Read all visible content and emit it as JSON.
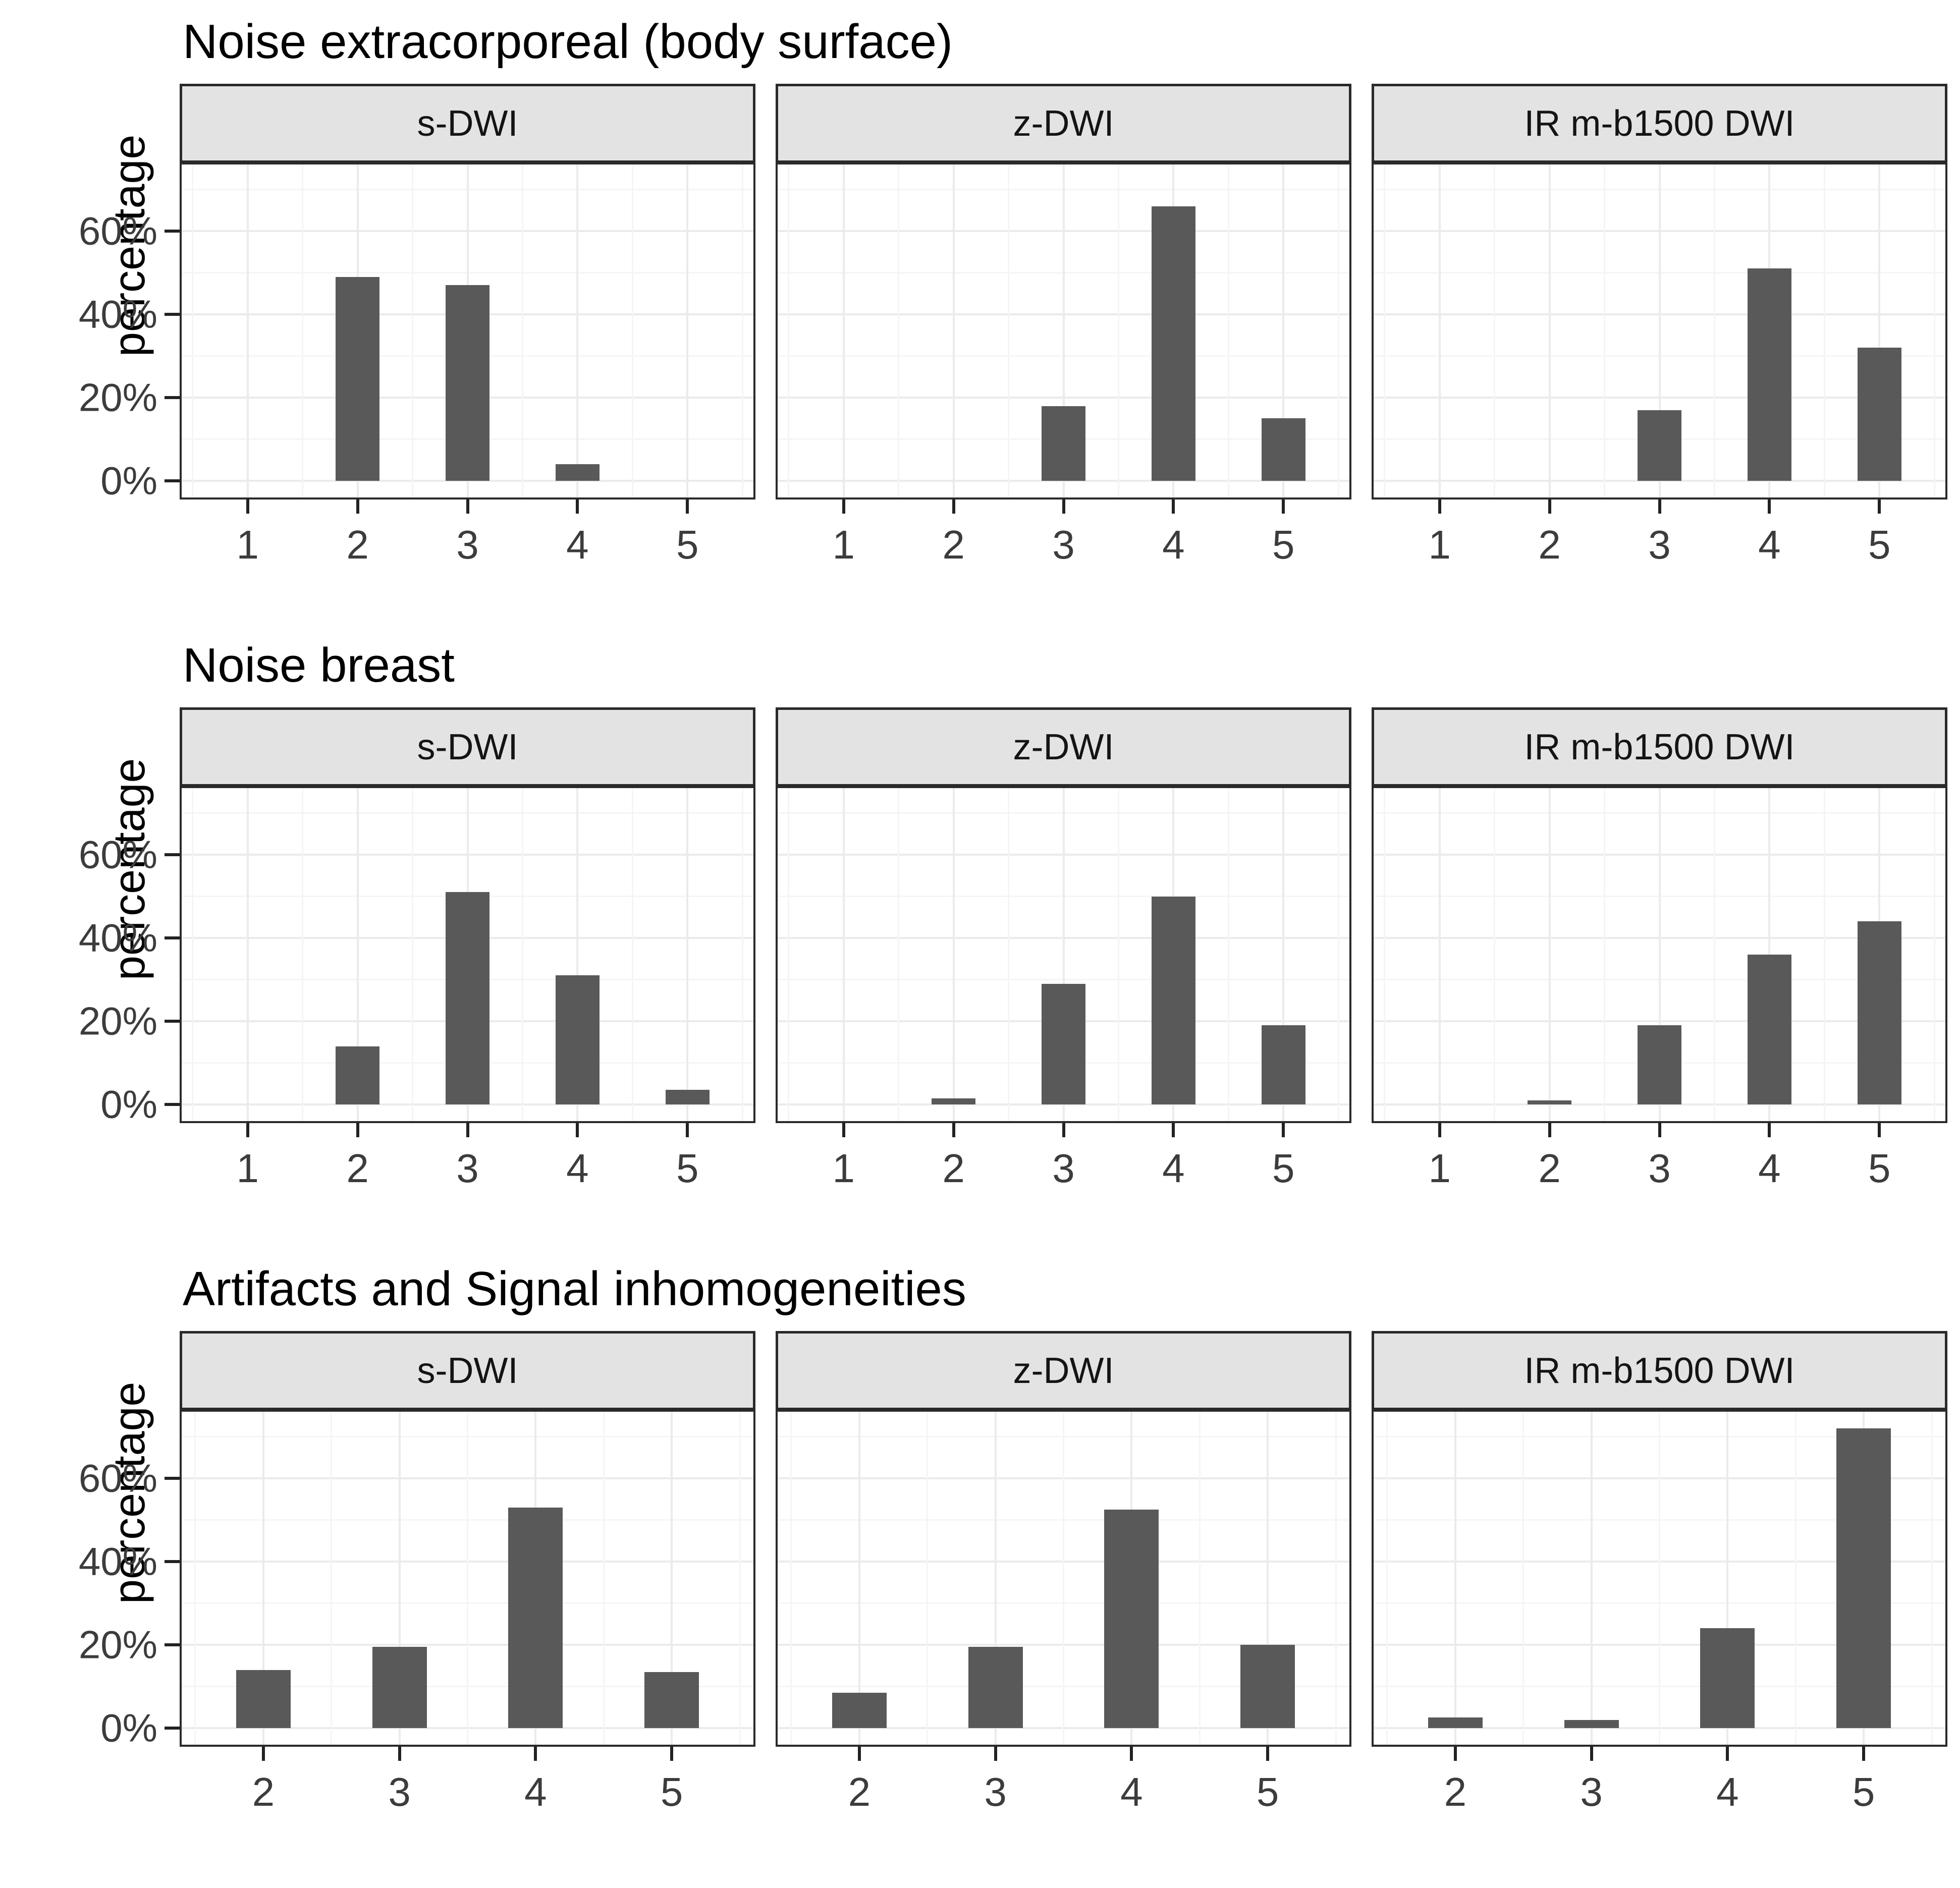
{
  "yaxis": {
    "label": "percentage",
    "ticks": [
      {
        "value": 0,
        "label": "0%"
      },
      {
        "value": 20,
        "label": "20%"
      },
      {
        "value": 40,
        "label": "40%"
      },
      {
        "value": 60,
        "label": "60%"
      }
    ],
    "minor_values": [
      10,
      30,
      50,
      70
    ],
    "ylim": [
      0,
      76
    ]
  },
  "colors": {
    "bar": "#595959",
    "strip_bg": "#e3e3e3",
    "border": "#2a2a2a",
    "grid_major": "#ebebeb",
    "grid_minor": "#f5f5f5",
    "axis_text": "#3c3c3c",
    "title_text": "#000000"
  },
  "chart_data": [
    {
      "type": "bar",
      "title": "Noise extracorporeal (body surface)",
      "xlabel": "",
      "ylabel": "percentage",
      "ylim": [
        0,
        76
      ],
      "grid": true,
      "facets": [
        {
          "label": "s-DWI",
          "categories": [
            "1",
            "2",
            "3",
            "4",
            "5"
          ],
          "values": [
            0,
            49,
            47,
            4,
            0
          ]
        },
        {
          "label": "z-DWI",
          "categories": [
            "1",
            "2",
            "3",
            "4",
            "5"
          ],
          "values": [
            0,
            0,
            18,
            66,
            15
          ]
        },
        {
          "label": "IR m-b1500 DWI",
          "categories": [
            "1",
            "2",
            "3",
            "4",
            "5"
          ],
          "values": [
            0,
            0,
            17,
            51,
            32
          ]
        }
      ]
    },
    {
      "type": "bar",
      "title": "Noise breast",
      "xlabel": "",
      "ylabel": "percentage",
      "ylim": [
        0,
        76
      ],
      "grid": true,
      "facets": [
        {
          "label": "s-DWI",
          "categories": [
            "1",
            "2",
            "3",
            "4",
            "5"
          ],
          "values": [
            0,
            14,
            51,
            31,
            3.5
          ]
        },
        {
          "label": "z-DWI",
          "categories": [
            "1",
            "2",
            "3",
            "4",
            "5"
          ],
          "values": [
            0,
            1.5,
            29,
            50,
            19
          ]
        },
        {
          "label": "IR m-b1500 DWI",
          "categories": [
            "1",
            "2",
            "3",
            "4",
            "5"
          ],
          "values": [
            0,
            1,
            19,
            36,
            44
          ]
        }
      ]
    },
    {
      "type": "bar",
      "title": "Artifacts and Signal inhomogeneities",
      "xlabel": "",
      "ylabel": "percentage",
      "ylim": [
        0,
        76
      ],
      "grid": true,
      "facets": [
        {
          "label": "s-DWI",
          "categories": [
            "2",
            "3",
            "4",
            "5"
          ],
          "values": [
            14,
            19.5,
            53,
            13.5
          ]
        },
        {
          "label": "z-DWI",
          "categories": [
            "2",
            "3",
            "4",
            "5"
          ],
          "values": [
            8.5,
            19.5,
            52.5,
            20
          ]
        },
        {
          "label": "IR m-b1500 DWI",
          "categories": [
            "2",
            "3",
            "4",
            "5"
          ],
          "values": [
            2.5,
            2,
            24,
            72
          ]
        }
      ]
    }
  ]
}
